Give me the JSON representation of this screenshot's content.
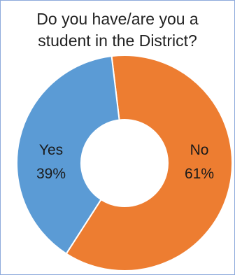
{
  "chart_data": {
    "type": "pie",
    "title_line1": "Do you have/are you a",
    "title_line2": "student in the District?",
    "slices": [
      {
        "label": "No",
        "value": 61,
        "percent_text": "61%",
        "color": "#ed7d31"
      },
      {
        "label": "Yes",
        "value": 39,
        "percent_text": "39%",
        "color": "#5b9bd5"
      }
    ],
    "donut": true,
    "legend": "none"
  }
}
